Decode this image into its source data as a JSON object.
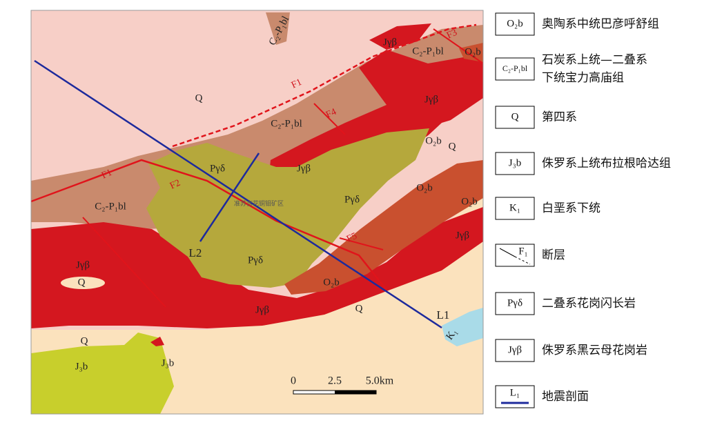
{
  "map": {
    "labels": [
      "Q",
      "Q",
      "Q",
      "Q",
      "Q",
      "C₂-P₁bl",
      "C₂-P₁bl",
      "C₂-P₁bl",
      "C₂-P₁bl",
      "Jγβ",
      "Jγβ",
      "Jγβ",
      "Jγβ",
      "Jγβ",
      "Jγβ",
      "Pγδ",
      "Pγδ",
      "Pγδ",
      "O₂b",
      "O₂b",
      "O₂b",
      "O₂b",
      "O₂b",
      "J₃b",
      "J₃b",
      "K₁",
      "准苏吉花铜钼矿区"
    ],
    "faults": [
      "F1",
      "F1",
      "F2",
      "F3",
      "F4",
      "F5"
    ],
    "profiles": [
      "L1",
      "L2"
    ],
    "scale": [
      "0",
      "2.5",
      "5.0km"
    ]
  },
  "legend": [
    {
      "symbol": "O₂b",
      "label": [
        "奥陶系中统巴彦呼舒组"
      ]
    },
    {
      "symbol": "C₂-P₁bl",
      "label": [
        "石炭系上统—二叠系",
        "下统宝力高庙组"
      ]
    },
    {
      "symbol": "Q",
      "label": [
        "第四系"
      ]
    },
    {
      "symbol": "J₃b",
      "label": [
        "侏罗系上统布拉根哈达组"
      ]
    },
    {
      "symbol": "K₁",
      "label": [
        "白垩系下统"
      ]
    },
    {
      "symbol": "F₁",
      "label": [
        "断层"
      ]
    },
    {
      "symbol": "Pγδ",
      "label": [
        "二叠系花岗闪长岩"
      ]
    },
    {
      "symbol": "Jγβ",
      "label": [
        "侏罗系黑云母花岗岩"
      ]
    },
    {
      "symbol": "L₁",
      "label": [
        "地震剖面"
      ]
    }
  ]
}
